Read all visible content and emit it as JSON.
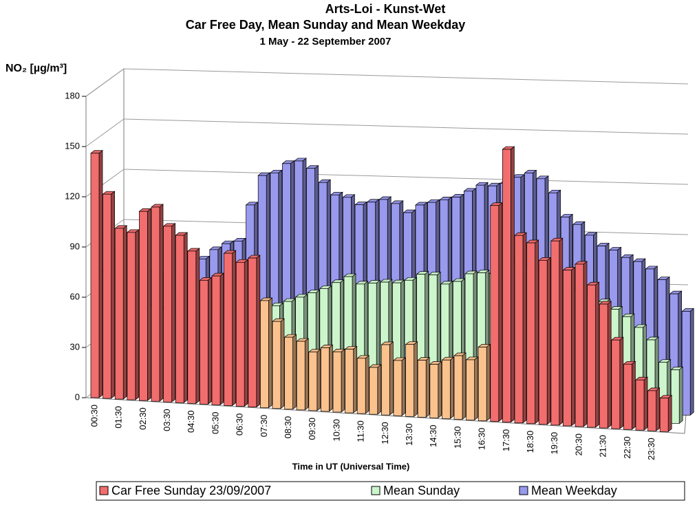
{
  "chart_data": {
    "type": "bar3d",
    "title": "Arts-Loi  -  Kunst-Wet",
    "subtitle": "Car Free Day, Mean Sunday and Mean Weekday",
    "period": "1 May - 22 September 2007",
    "y_label": "NO₂  [µg/m³]",
    "x_label": "Time in UT (Universal Time)",
    "categories": [
      "00:30",
      null,
      "01:30",
      null,
      "02:30",
      null,
      "03:30",
      null,
      "04:30",
      null,
      "05:30",
      null,
      "06:30",
      null,
      "07:30",
      null,
      "08:30",
      null,
      "09:30",
      null,
      "10:30",
      null,
      "11:30",
      null,
      "12:30",
      null,
      "13:30",
      null,
      "14:30",
      null,
      "15:30",
      null,
      "16:30",
      null,
      "17:30",
      null,
      "18:30",
      null,
      "19:30",
      null,
      "20:30",
      null,
      "21:30",
      null,
      "22:30",
      null,
      "23:30",
      null
    ],
    "ylim": [
      0,
      180
    ],
    "yticks": [
      0,
      30,
      60,
      90,
      120,
      150,
      180
    ],
    "grid": true,
    "legend": "bottom",
    "series": [
      {
        "name": "Car Free Sunday 23/09/2007",
        "color": "#f26d6d",
        "point_colors": [
          "#f26d6d",
          "#f26d6d",
          "#f26d6d",
          "#f26d6d",
          "#f26d6d",
          "#f26d6d",
          "#f26d6d",
          "#f26d6d",
          "#f26d6d",
          "#f26d6d",
          "#f26d6d",
          "#f26d6d",
          "#f26d6d",
          "#f26d6d",
          "#fbc28e",
          "#fbc28e",
          "#fbc28e",
          "#fbc28e",
          "#fbc28e",
          "#fbc28e",
          "#fbc28e",
          "#fbc28e",
          "#fbc28e",
          "#fbc28e",
          "#fbc28e",
          "#fbc28e",
          "#fbc28e",
          "#fbc28e",
          "#fbc28e",
          "#fbc28e",
          "#fbc28e",
          "#fbc28e",
          "#fbc28e",
          "#f26d6d",
          "#f26d6d",
          "#f26d6d",
          "#f26d6d",
          "#f26d6d",
          "#f26d6d",
          "#f26d6d",
          "#f26d6d",
          "#f26d6d",
          "#f26d6d",
          "#f26d6d",
          "#f26d6d",
          "#f26d6d",
          "#f26d6d",
          "#f26d6d"
        ],
        "values": [
          146,
          122,
          102,
          100,
          113,
          116,
          105,
          100,
          91,
          74,
          77,
          91,
          86,
          89,
          64,
          52,
          43,
          41,
          35,
          38,
          36,
          38,
          33,
          28,
          42,
          33,
          43,
          34,
          32,
          35,
          38,
          36,
          44,
          129,
          163,
          112,
          108,
          98,
          110,
          93,
          97,
          85,
          74,
          53,
          39,
          30,
          24,
          20
        ]
      },
      {
        "name": "Mean Sunday",
        "color": "#ccf5cc",
        "values": [
          70,
          65,
          60,
          55,
          52,
          50,
          48,
          46,
          45,
          46,
          48,
          50,
          52,
          54,
          56,
          59,
          62,
          65,
          68,
          72,
          76,
          72,
          73,
          74,
          74,
          76,
          80,
          80,
          75,
          77,
          82,
          83,
          83,
          90,
          90,
          88,
          86,
          84,
          80,
          76,
          74,
          70,
          66,
          62,
          56,
          49,
          36,
          32
        ]
      },
      {
        "name": "Mean Weekday",
        "color": "#9999ee",
        "values": [
          80,
          74,
          70,
          66,
          65,
          66,
          70,
          76,
          82,
          86,
          88,
          110,
          128,
          130,
          136,
          138,
          134,
          126,
          119,
          118,
          114,
          116,
          118,
          116,
          111,
          116,
          118,
          120,
          122,
          126,
          130,
          130,
          132,
          136,
          139,
          136,
          128,
          114,
          110,
          104,
          98,
          96,
          92,
          90,
          86,
          80,
          72,
          62
        ]
      }
    ]
  }
}
